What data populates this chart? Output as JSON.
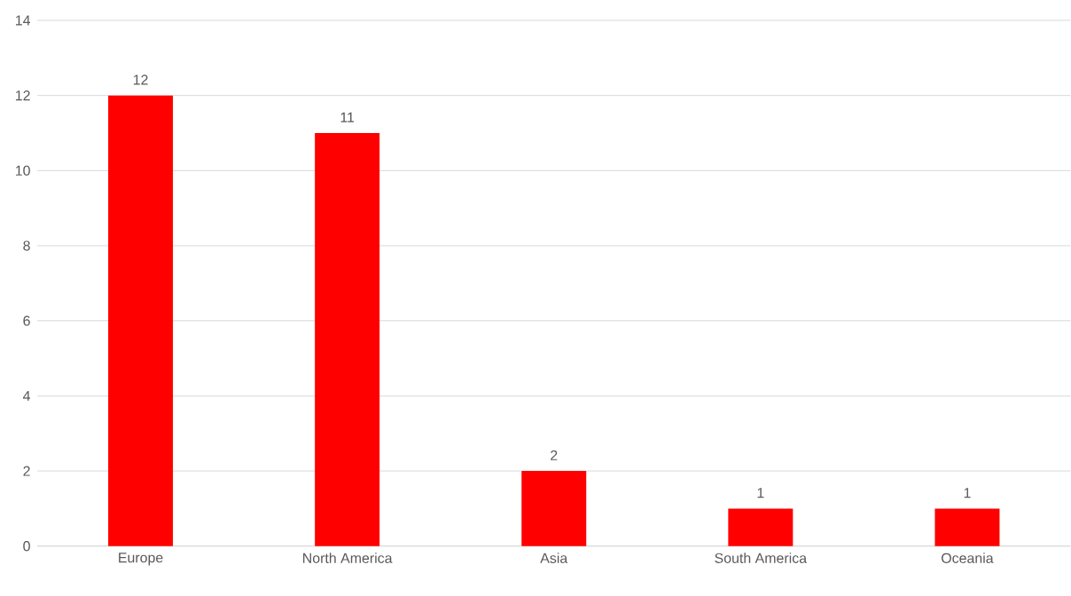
{
  "chart_data": {
    "type": "bar",
    "categories": [
      "Europe",
      "North America",
      "Asia",
      "South America",
      "Oceania"
    ],
    "values": [
      12,
      11,
      2,
      1,
      1
    ],
    "color": "#ff0000",
    "ylim": [
      0,
      14
    ],
    "yticks": [
      0,
      2,
      4,
      6,
      8,
      10,
      12,
      14
    ],
    "grid": "y",
    "data_labels": true
  }
}
